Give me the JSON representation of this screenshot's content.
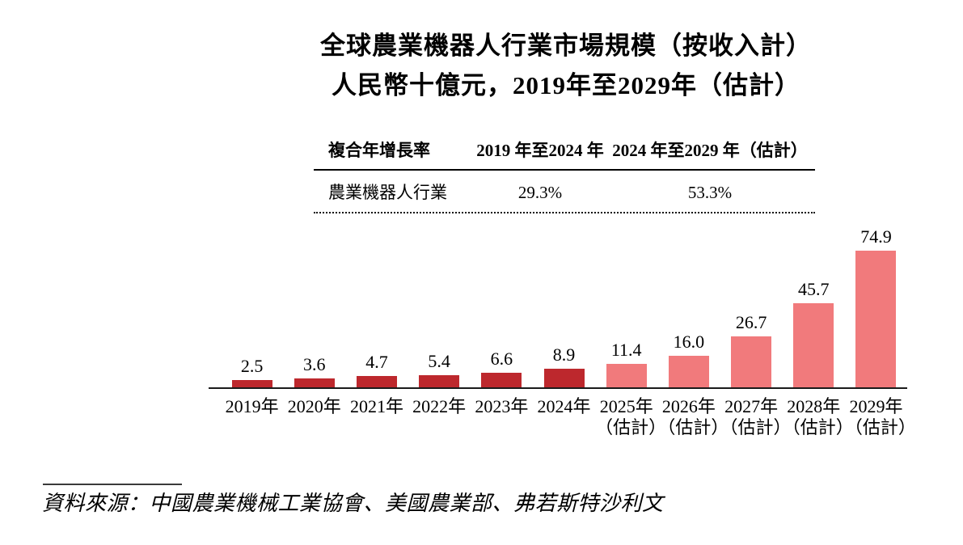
{
  "title": {
    "line1": "全球農業機器人行業市場規模（按收入計）",
    "line2": "人民幣十億元，2019年至2029年（估計）"
  },
  "cagr_table": {
    "headers": [
      "複合年增長率",
      "2019 年至2024 年",
      "2024 年至2029 年（估計）"
    ],
    "row": {
      "label": "農業機器人行業",
      "cagr_2019_2024": "29.3%",
      "cagr_2024_2029": "53.3%"
    }
  },
  "chart_data": {
    "type": "bar",
    "title": "全球農業機器人行業市場規模（按收入計）",
    "unit_note": "人民幣十億元，2019年至2029年（估計）",
    "categories": [
      {
        "label": "2019年",
        "sublabel": ""
      },
      {
        "label": "2020年",
        "sublabel": ""
      },
      {
        "label": "2021年",
        "sublabel": ""
      },
      {
        "label": "2022年",
        "sublabel": ""
      },
      {
        "label": "2023年",
        "sublabel": ""
      },
      {
        "label": "2024年",
        "sublabel": ""
      },
      {
        "label": "2025年",
        "sublabel": "（估計）"
      },
      {
        "label": "2026年",
        "sublabel": "（估計）"
      },
      {
        "label": "2027年",
        "sublabel": "（估計）"
      },
      {
        "label": "2028年",
        "sublabel": "（估計）"
      },
      {
        "label": "2029年",
        "sublabel": "（估計）"
      }
    ],
    "values": [
      2.5,
      3.6,
      4.7,
      5.4,
      6.6,
      8.9,
      11.4,
      16.0,
      26.7,
      45.7,
      74.9
    ],
    "value_labels": [
      "2.5",
      "3.6",
      "4.7",
      "5.4",
      "6.6",
      "8.9",
      "11.4",
      "16.0",
      "26.7",
      "45.7",
      "74.9"
    ],
    "historical_count": 6,
    "colors": {
      "historical": "#BD282D",
      "forecast": "#F17A7C",
      "axis": "#1B1B1B"
    },
    "ylim": [
      0,
      80
    ],
    "grid": false,
    "legend": "none",
    "value_labels_position": "above-bar"
  },
  "source": {
    "text": "資料來源：中國農業機械工業協會、美國農業部、弗若斯特沙利文"
  }
}
